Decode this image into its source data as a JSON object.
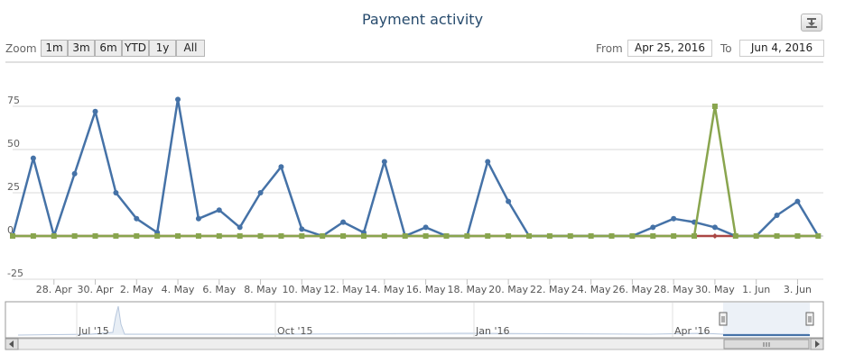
{
  "title": "Payment activity",
  "export_icon": "download-icon",
  "range_selector": {
    "zoom_label": "Zoom",
    "buttons": [
      "1m",
      "3m",
      "6m",
      "YTD",
      "1y",
      "All"
    ],
    "from_label": "From",
    "from_value": "Apr 25, 2016",
    "to_label": "To",
    "to_value": "Jun 4, 2016"
  },
  "chart_data": {
    "type": "line",
    "x_start": "Apr 26, 2016",
    "x_end": "Jun 4, 2016",
    "ylim": [
      -25,
      80
    ],
    "y_ticks": [
      "75",
      "50",
      "25",
      "0",
      "-25"
    ],
    "x_ticks": [
      "28. Apr",
      "30. Apr",
      "2. May",
      "4. May",
      "6. May",
      "8. May",
      "10. May",
      "12. May",
      "14. May",
      "16. May",
      "18. May",
      "20. May",
      "22. May",
      "24. May",
      "26. May",
      "28. May",
      "30. May",
      "1. Jun",
      "3. Jun"
    ],
    "grid": true,
    "series": [
      {
        "color": "#4572a7",
        "values": [
          0,
          45,
          0,
          36,
          72,
          25,
          10,
          2,
          79,
          10,
          15,
          5,
          25,
          40,
          4,
          0,
          8,
          2,
          43,
          0,
          5,
          0,
          0,
          43,
          20,
          0,
          0,
          0,
          0,
          0,
          0,
          5,
          10,
          8,
          5,
          0,
          0,
          12,
          20,
          0
        ]
      },
      {
        "color": "#aa4643",
        "values": [
          0,
          0,
          0,
          0,
          0,
          0,
          0,
          0,
          0,
          0,
          0,
          0,
          0,
          0,
          0,
          0,
          0,
          0,
          0,
          0,
          0,
          0,
          0,
          0,
          0,
          0,
          0,
          0,
          0,
          0,
          0,
          0,
          0,
          0,
          0,
          0,
          0,
          0,
          0,
          0
        ]
      },
      {
        "color": "#89a54e",
        "values": [
          0,
          0,
          0,
          0,
          0,
          0,
          0,
          0,
          0,
          0,
          0,
          0,
          0,
          0,
          0,
          0,
          0,
          0,
          0,
          0,
          0,
          0,
          0,
          0,
          0,
          0,
          0,
          0,
          0,
          0,
          0,
          0,
          0,
          0,
          75,
          0,
          0,
          0,
          0,
          0
        ]
      }
    ]
  },
  "navigator": {
    "labels": [
      "Jul '15",
      "Oct '15",
      "Jan '16",
      "Apr '16"
    ]
  }
}
